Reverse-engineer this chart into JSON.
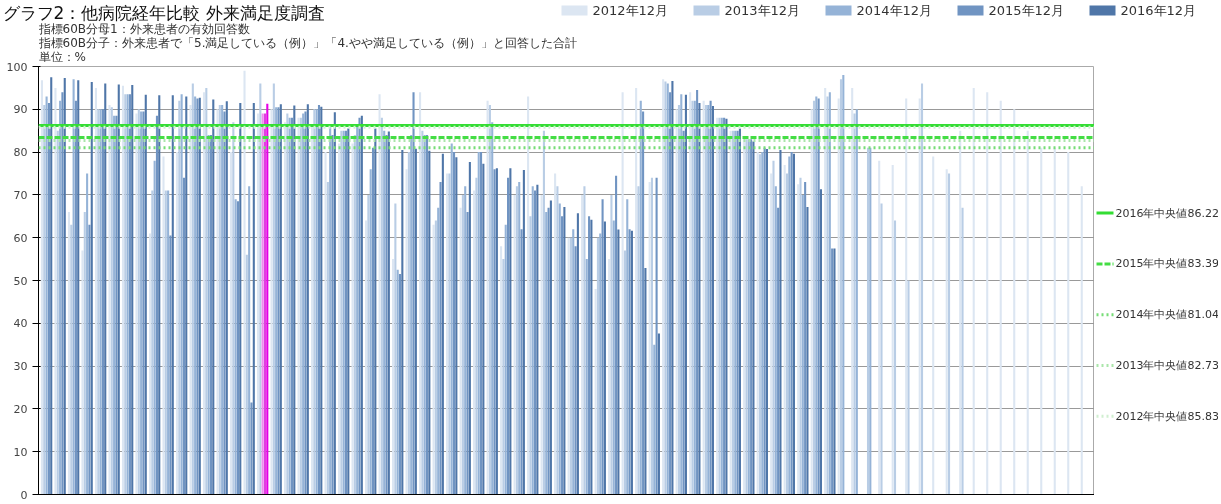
{
  "chart_data": {
    "type": "bar",
    "title": "グラフ2：他病院経年比較 外来満足度調査",
    "annotations": [
      "指標60B分母1：外来患者の有効回答数",
      "指標60B分子：外来患者で「5.満足している（例）」「4.やや満足している（例）」と回答した合計",
      "単位：%"
    ],
    "categories": [
      null,
      null,
      null,
      null,
      null,
      null,
      null,
      null,
      null,
      null,
      null,
      null,
      null,
      null,
      null,
      null,
      null,
      null,
      null,
      null,
      null,
      null,
      null,
      null,
      null,
      null,
      null,
      null,
      null,
      null,
      null,
      null,
      null,
      null,
      null,
      null,
      null,
      null,
      null,
      null,
      null,
      null,
      null,
      null,
      null,
      null,
      null,
      null,
      null,
      null,
      null,
      null,
      null,
      null,
      null,
      null,
      null,
      null,
      null,
      null,
      null,
      null,
      null,
      null,
      null,
      null,
      null,
      null,
      null,
      null,
      null,
      null,
      null,
      null,
      null,
      null,
      null,
      null
    ],
    "series": [
      {
        "name": "2012年12月",
        "color": "#dce6f2",
        "values": [
          96.8,
          95,
          66,
          57,
          95,
          91,
          95.5,
          89,
          61,
          79,
          80,
          91,
          94,
          90,
          80,
          99,
          89,
          90,
          87,
          88,
          86,
          80,
          82,
          82,
          64,
          93.5,
          55,
          76,
          94,
          63,
          75,
          67,
          71,
          92,
          58,
          70,
          93,
          70,
          75,
          60,
          70,
          48,
          55,
          94,
          95,
          73,
          97,
          90,
          94,
          92,
          88,
          85,
          83,
          80,
          75,
          77,
          72.5,
          90,
          95,
          92.5,
          95,
          null,
          78,
          77,
          92.5,
          92.5,
          79,
          76,
          85,
          95,
          94,
          92,
          90,
          85,
          81,
          81,
          80,
          72
        ]
      },
      {
        "name": "2013年12月",
        "color": "#b9cde5",
        "values": [
          91,
          85,
          63,
          66,
          90,
          90.5,
          93.5,
          90,
          71,
          71,
          92,
          96,
          95,
          91,
          87,
          56,
          96,
          96,
          89,
          88,
          90,
          73,
          85,
          84,
          70,
          88,
          68,
          80,
          85,
          64,
          75,
          70,
          74,
          91,
          55,
          72,
          65,
          85,
          72,
          60,
          72,
          60,
          70,
          57,
          72,
          74,
          96.5,
          91,
          92,
          91,
          88,
          85,
          83,
          79.5,
          78,
          75,
          74,
          92,
          93,
          97,
          89,
          81,
          68,
          64,
          50,
          96,
          null,
          75,
          67,
          null,
          null,
          null,
          null,
          null,
          null,
          null,
          null,
          null
        ]
      },
      {
        "name": "2014年12月",
        "color": "#95b3d7",
        "colors": [
          "#95b3d7",
          "#95b3d7",
          "#95b3d7",
          "#95b3d7",
          "#95b3d7",
          "#95b3d7",
          "#95b3d7",
          "#95b3d7",
          "#95b3d7",
          "#95b3d7",
          "#95b3d7",
          "#95b3d7",
          "#95b3d7",
          "#95b3d7",
          "#95b3d7",
          "#95b3d7",
          "#f08cf0",
          "#95b3d7",
          "#95b3d7",
          "#95b3d7",
          "#95b3d7",
          "#95b3d7",
          "#95b3d7",
          "#95b3d7",
          "#95b3d7",
          "#95b3d7",
          "#95b3d7",
          "#95b3d7",
          "#95b3d7",
          "#95b3d7",
          "#95b3d7",
          "#95b3d7",
          "#95b3d7",
          "#95b3d7",
          "#95b3d7",
          "#95b3d7",
          "#95b3d7",
          "#95b3d7",
          "#95b3d7",
          "#95b3d7",
          "#95b3d7",
          "#95b3d7",
          "#95b3d7",
          "#95b3d7",
          "#95b3d7",
          "#95b3d7",
          "#95b3d7",
          "#95b3d7",
          "#95b3d7",
          "#95b3d7",
          "#95b3d7",
          "#95b3d7",
          "#95b3d7",
          "#95b3d7",
          "#95b3d7",
          "#95b3d7",
          "#95b3d7",
          "#95b3d7",
          "#95b3d7",
          "#95b3d7",
          "#95b3d7",
          "#95b3d7",
          "#95b3d7",
          "#95b3d7",
          "#95b3d7",
          "#95b3d7",
          "#95b3d7",
          "#95b3d7",
          "#95b3d7",
          "#95b3d7",
          "#95b3d7",
          "#95b3d7",
          "#95b3d7",
          "#95b3d7",
          "#95b3d7",
          "#95b3d7",
          "#95b3d7",
          "#95b3d7"
        ],
        "values": [
          93,
          92,
          97,
          75,
          90,
          88.5,
          93.5,
          89.5,
          78,
          71,
          93.5,
          93,
          84,
          91,
          69,
          72,
          89,
          90.5,
          88,
          89,
          90,
          86,
          85,
          86,
          76,
          85,
          52.5,
          84,
          84,
          67,
          82,
          72,
          80,
          87,
          63,
          73,
          72,
          66,
          68,
          62,
          55,
          61,
          64,
          69,
          92,
          35,
          96,
          93.5,
          92,
          91,
          88,
          85,
          83,
          80,
          72,
          79,
          70,
          93,
          94,
          98,
          90,
          81,
          null,
          null,
          null,
          null,
          null,
          null,
          null,
          null,
          null,
          null,
          null,
          null,
          null,
          null,
          null,
          null
        ]
      },
      {
        "name": "2015年12月",
        "color": "#7094c2",
        "colors": [
          "#7094c2",
          "#7094c2",
          "#7094c2",
          "#7094c2",
          "#7094c2",
          "#7094c2",
          "#7094c2",
          "#7094c2",
          "#7094c2",
          "#7094c2",
          "#7094c2",
          "#7094c2",
          "#7094c2",
          "#7094c2",
          "#7094c2",
          "#7094c2",
          "#e040e0",
          "#7094c2",
          "#7094c2",
          "#7094c2",
          "#7094c2",
          "#7094c2",
          "#7094c2",
          "#7094c2",
          "#7094c2",
          "#7094c2",
          "#7094c2",
          "#7094c2",
          "#7094c2",
          "#7094c2",
          "#7094c2",
          "#7094c2",
          "#7094c2",
          "#7094c2",
          "#7094c2",
          "#7094c2",
          "#7094c2",
          "#7094c2",
          "#7094c2",
          "#7094c2",
          "#7094c2",
          "#7094c2",
          "#7094c2",
          "#7094c2",
          "#7094c2",
          "#7094c2",
          "#7094c2",
          "#7094c2",
          "#7094c2",
          "#7094c2",
          "#7094c2",
          "#7094c2",
          "#7094c2",
          "#7094c2",
          "#7094c2",
          "#7094c2",
          "#7094c2",
          "#7094c2",
          "#7094c2",
          "#7094c2",
          "#7094c2",
          "#7094c2",
          "#7094c2",
          "#7094c2",
          "#7094c2",
          "#7094c2",
          "#7094c2",
          "#7094c2",
          "#7094c2",
          "#7094c2",
          "#7094c2",
          "#7094c2",
          "#7094c2",
          "#7094c2",
          "#7094c2",
          "#7094c2",
          "#7094c2",
          "#7094c2"
        ],
        "values": [
          91.5,
          94,
          92,
          63,
          90,
          88.5,
          93.5,
          89.5,
          88.5,
          60.5,
          74,
          92.5,
          84,
          89.5,
          68.5,
          21.5,
          89,
          90.5,
          88,
          89.5,
          91,
          84,
          85,
          88,
          81,
          84,
          51.5,
          94,
          84,
          73,
          80,
          66,
          80,
          76,
          74,
          62,
          71,
          67,
          65,
          58,
          65,
          69,
          74.5,
          62,
          89.5,
          74,
          94,
          85,
          94.5,
          92,
          88,
          85,
          83,
          81,
          67,
          80,
          73,
          92.5,
          57.5,
          null,
          null,
          null,
          null,
          null,
          null,
          null,
          null,
          null,
          null,
          null,
          null,
          null,
          null,
          null,
          null,
          null,
          null,
          null
        ]
      },
      {
        "name": "2016年12月",
        "color": "#4f76a8",
        "colors": [
          "#4f76a8",
          "#4f76a8",
          "#4f76a8",
          "#4f76a8",
          "#4f76a8",
          "#4f76a8",
          "#4f76a8",
          "#4f76a8",
          "#4f76a8",
          "#4f76a8",
          "#4f76a8",
          "#4f76a8",
          "#4f76a8",
          "#4f76a8",
          "#4f76a8",
          "#4f76a8",
          "#e600e6",
          "#4f76a8",
          "#4f76a8",
          "#4f76a8",
          "#4f76a8",
          "#4f76a8",
          "#4f76a8",
          "#4f76a8",
          "#4f76a8",
          "#4f76a8",
          "#4f76a8",
          "#4f76a8",
          "#4f76a8",
          "#4f76a8",
          "#4f76a8",
          "#4f76a8",
          "#4f76a8",
          "#4f76a8",
          "#4f76a8",
          "#4f76a8",
          "#4f76a8",
          "#4f76a8",
          "#4f76a8",
          "#4f76a8",
          "#4f76a8",
          "#4f76a8",
          "#4f76a8",
          "#4f76a8",
          "#4f76a8",
          "#4f76a8",
          "#4f76a8",
          "#4f76a8",
          "#4f76a8",
          "#4f76a8",
          "#4f76a8",
          "#4f76a8",
          "#4f76a8",
          "#4f76a8",
          "#4f76a8",
          "#4f76a8",
          "#4f76a8",
          "#4f76a8",
          "#4f76a8",
          "#4f76a8",
          "#4f76a8",
          "#4f76a8",
          "#4f76a8",
          "#4f76a8",
          "#4f76a8",
          "#4f76a8",
          "#4f76a8",
          "#4f76a8",
          "#4f76a8",
          "#4f76a8",
          "#4f76a8",
          "#4f76a8",
          "#4f76a8",
          "#4f76a8",
          "#4f76a8",
          "#4f76a8",
          "#4f76a8",
          "#4f76a8"
        ],
        "values": [
          97.5,
          97.3,
          96.8,
          96.4,
          96,
          95.8,
          95.7,
          93.4,
          93.3,
          93.3,
          93,
          92.7,
          92.3,
          91.9,
          91.5,
          91.5,
          91.3,
          91.2,
          90.9,
          91.2,
          90.6,
          89.3,
          85.5,
          88.5,
          85.5,
          84.8,
          80.5,
          80.8,
          80.3,
          79.6,
          78.8,
          77.7,
          77.3,
          76.2,
          76.2,
          75.8,
          72.4,
          68.7,
          67.2,
          65.7,
          64.2,
          63.8,
          61.9,
          61.6,
          52.9,
          37.6,
          96.6,
          93.4,
          91.5,
          90.8,
          87.8,
          85.5,
          82.5,
          80.7,
          80.5,
          79.6,
          67.2,
          71.3,
          57.5,
          null,
          null,
          null,
          null,
          null,
          null,
          null,
          null,
          null,
          null,
          null,
          null,
          null,
          null,
          null,
          null,
          null,
          null,
          null
        ]
      }
    ],
    "ylim": [
      0,
      100
    ],
    "yticks": [
      0,
      10,
      20,
      30,
      40,
      50,
      60,
      70,
      80,
      90,
      100
    ],
    "grid": "y",
    "legend": "top right",
    "tick_labels": "y",
    "ref_lines": [
      {
        "axis": "y",
        "value": 86.22,
        "label": "2016年中央値86.22",
        "color": "#33dd33",
        "line_style": "solid"
      },
      {
        "axis": "y",
        "value": 83.39,
        "label": "2015年中央値83.39",
        "color": "#44dd44",
        "line_style": "dashed"
      },
      {
        "axis": "y",
        "value": 81.04,
        "label": "2014年中央値81.04",
        "color": "#77dd77",
        "line_style": "dotted"
      },
      {
        "axis": "y",
        "value": 82.73,
        "label": "2013年中央値82.73",
        "color": "#aae6aa",
        "line_style": "dotted"
      },
      {
        "axis": "y",
        "value": 85.83,
        "label": "2012年中央値85.83",
        "color": "#d0efd0",
        "line_style": "dotted"
      }
    ]
  }
}
